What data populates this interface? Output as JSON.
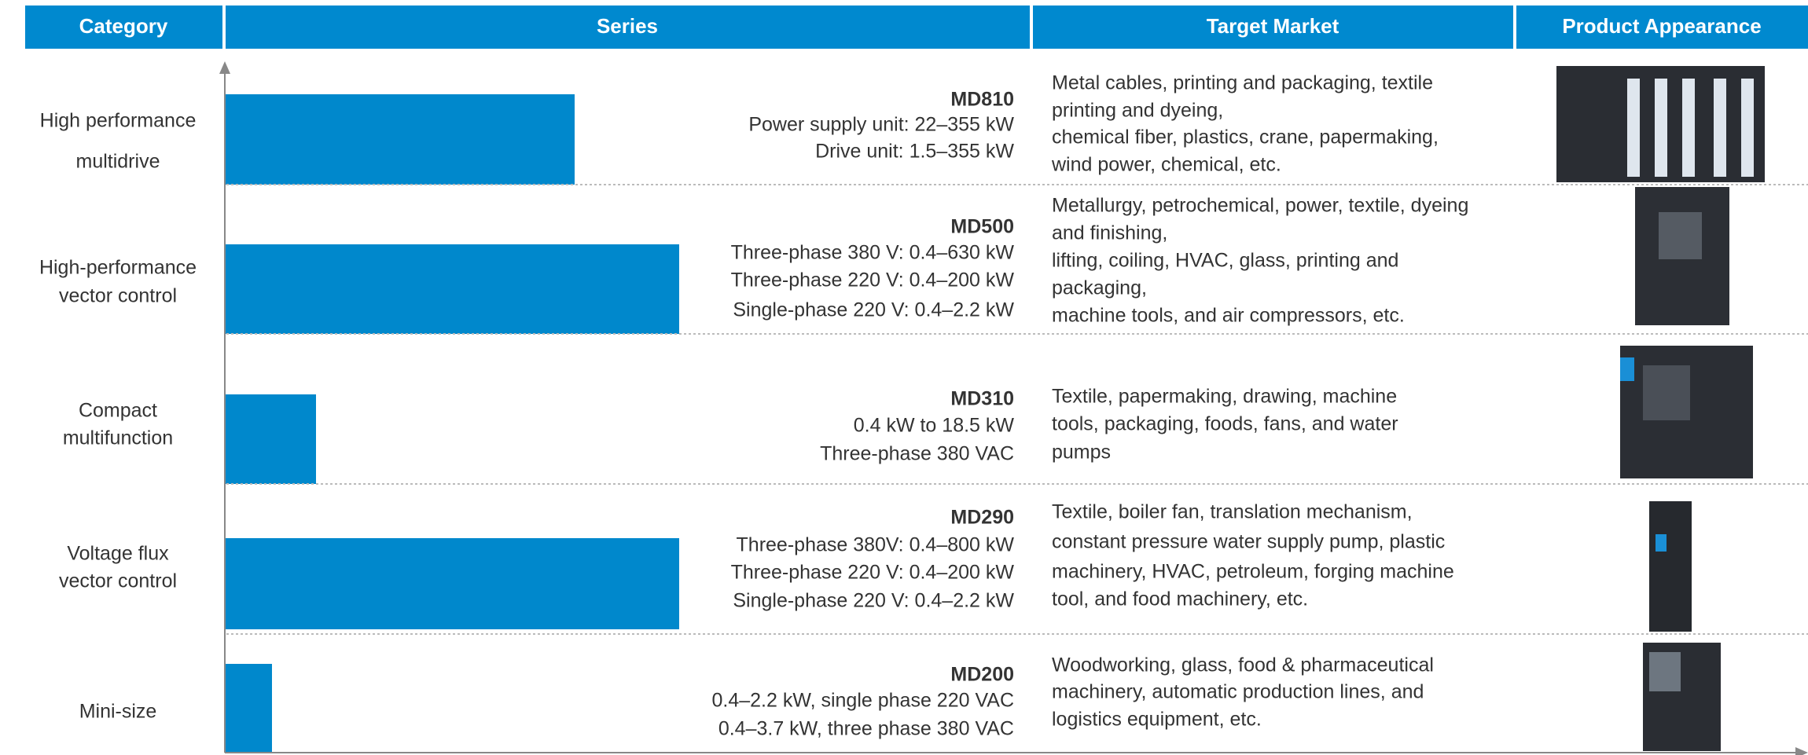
{
  "header": {
    "columns": [
      "Category",
      "Series",
      "Target Market",
      "Product Appearance"
    ]
  },
  "rows": [
    {
      "category": [
        "High performance",
        "multidrive"
      ],
      "series": {
        "name": "MD810",
        "lines": [
          "Power supply unit: 22–355 kW",
          "Drive unit: 1.5–355 kW"
        ]
      },
      "target": [
        "Metal cables, printing and packaging, textile",
        "printing and dyeing,",
        "chemical fiber, plastics, crane, papermaking,",
        "wind power, chemical, etc."
      ]
    },
    {
      "category": [
        "High-performance",
        "vector control"
      ],
      "series": {
        "name": "MD500",
        "lines": [
          "Three-phase 380 V: 0.4–630 kW",
          "Three-phase 220 V: 0.4–200 kW",
          "Single-phase 220 V: 0.4–2.2 kW"
        ]
      },
      "target": [
        "Metallurgy, petrochemical, power, textile, dyeing",
        "and finishing,",
        "lifting, coiling, HVAC, glass, printing and",
        "packaging,",
        "machine tools, and air compressors, etc."
      ]
    },
    {
      "category": [
        "Compact",
        "multifunction"
      ],
      "series": {
        "name": "MD310",
        "lines": [
          "0.4 kW to 18.5 kW",
          "Three-phase 380 VAC"
        ]
      },
      "target": [
        "Textile, papermaking, drawing, machine",
        "tools, packaging, foods, fans, and water",
        "pumps"
      ]
    },
    {
      "category": [
        "Voltage flux",
        "vector control"
      ],
      "series": {
        "name": "MD290",
        "lines": [
          "Three-phase 380V: 0.4–800 kW",
          "Three-phase 220 V: 0.4–200 kW",
          "Single-phase 220 V: 0.4–2.2 kW"
        ]
      },
      "target": [
        "Textile, boiler fan, translation mechanism,",
        "constant pressure water supply pump, plastic",
        "machinery, HVAC, petroleum, forging machine",
        "tool, and food machinery, etc."
      ]
    },
    {
      "category": [
        "Mini-size"
      ],
      "series": {
        "name": "MD200",
        "lines": [
          "0.4–2.2 kW, single phase 220 VAC",
          "0.4–3.7 kW, three phase 380 VAC"
        ]
      },
      "target": [
        "Woodworking, glass, food & pharmaceutical",
        "machinery, automatic production lines, and",
        "logistics equipment, etc."
      ]
    }
  ]
}
